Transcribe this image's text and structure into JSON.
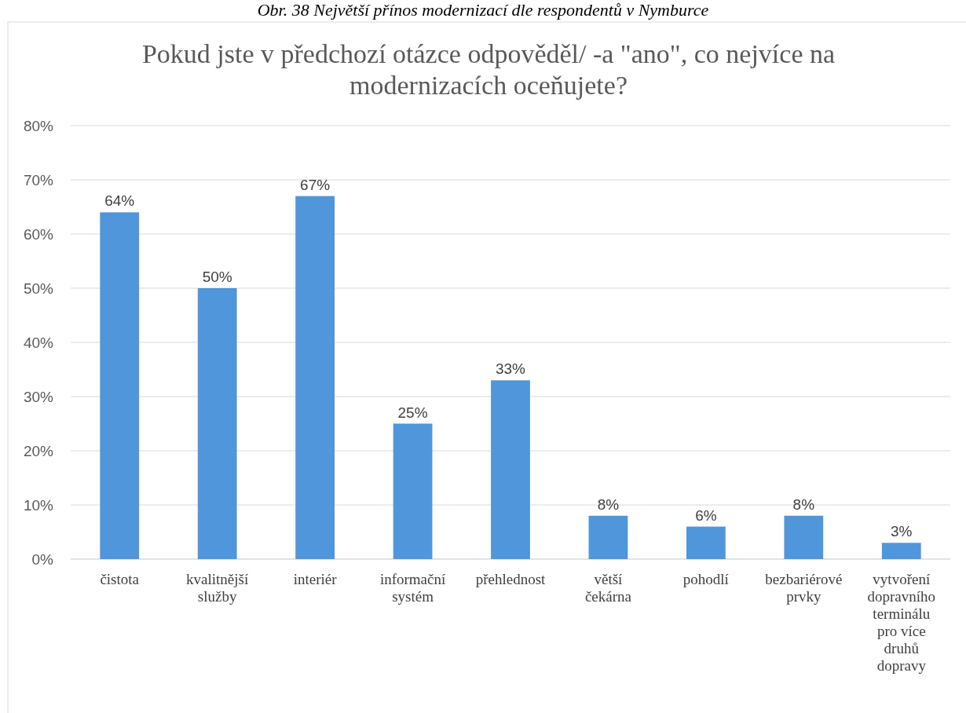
{
  "chart_data": {
    "type": "bar",
    "title": "Pokud jste v předchozí otázce odpověděl/ -a \"ano\", co nejvíce na modernizacích oceňujete?",
    "annotations": [
      "Obr. 38 Největší přínos modernizací dle respondentů v Nymburce"
    ],
    "categories": [
      "čistota",
      "kvalitnější služby",
      "interiér",
      "informační systém",
      "přehlednost",
      "větší čekárna",
      "pohodlí",
      "bezbariérové prvky",
      "vytvoření dopravního terminálu pro více druhů dopravy"
    ],
    "values": [
      64,
      50,
      67,
      25,
      33,
      8,
      6,
      8,
      3
    ],
    "color": "#5096da",
    "ylim": [
      0,
      80
    ],
    "yticks": [
      {
        "value": 0,
        "label": "0%"
      },
      {
        "value": 10,
        "label": "10%"
      },
      {
        "value": 20,
        "label": "20%"
      },
      {
        "value": 30,
        "label": "30%"
      },
      {
        "value": 40,
        "label": "40%"
      },
      {
        "value": 50,
        "label": "50%"
      },
      {
        "value": 60,
        "label": "60%"
      },
      {
        "value": 70,
        "label": "70%"
      },
      {
        "value": 80,
        "label": "80%"
      }
    ],
    "value_labels": [
      "64%",
      "50%",
      "67%",
      "25%",
      "33%",
      "8%",
      "6%",
      "8%",
      "3%"
    ],
    "grid": "y"
  }
}
